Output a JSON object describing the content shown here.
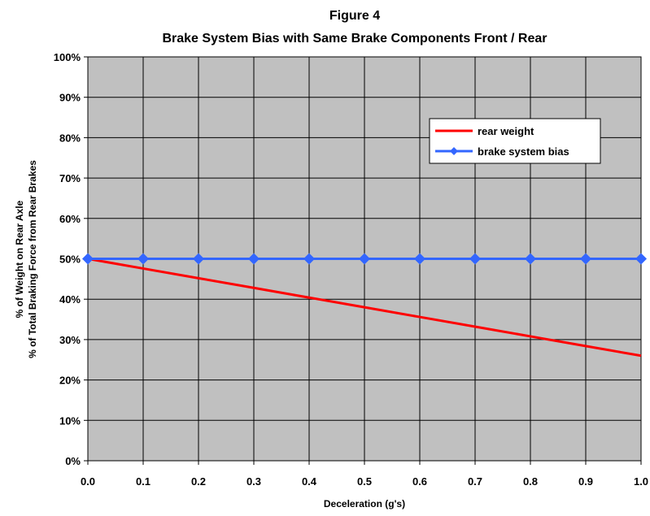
{
  "chart_data": {
    "type": "line",
    "title": "Figure 4",
    "subtitle": "Brake System Bias with Same Brake Components Front / Rear",
    "xlabel": "Deceleration (g's)",
    "ylabel_lines": [
      "% of Weight on Rear Axle",
      "% of Total Braking Force from Rear Brakes"
    ],
    "x": [
      0.0,
      0.1,
      0.2,
      0.3,
      0.4,
      0.5,
      0.6,
      0.7,
      0.8,
      0.9,
      1.0
    ],
    "x_tick_labels": [
      "0.0",
      "0.1",
      "0.2",
      "0.3",
      "0.4",
      "0.5",
      "0.6",
      "0.7",
      "0.8",
      "0.9",
      "1.0"
    ],
    "y_ticks": [
      0,
      10,
      20,
      30,
      40,
      50,
      60,
      70,
      80,
      90,
      100
    ],
    "y_tick_labels": [
      "0%",
      "10%",
      "20%",
      "30%",
      "40%",
      "50%",
      "60%",
      "70%",
      "80%",
      "90%",
      "100%"
    ],
    "xlim": [
      0,
      1.0
    ],
    "ylim": [
      0,
      100
    ],
    "grid": true,
    "legend_position": "top-right",
    "plot_background": "#c0c0c0",
    "series": [
      {
        "name": "rear weight",
        "color": "#ff0000",
        "marker": "none",
        "values": [
          50.0,
          47.6,
          45.2,
          42.8,
          40.4,
          38.0,
          35.6,
          33.2,
          30.8,
          28.4,
          26.0
        ]
      },
      {
        "name": "brake system bias",
        "color": "#3366ff",
        "marker": "diamond",
        "values": [
          50,
          50,
          50,
          50,
          50,
          50,
          50,
          50,
          50,
          50,
          50
        ]
      }
    ]
  }
}
